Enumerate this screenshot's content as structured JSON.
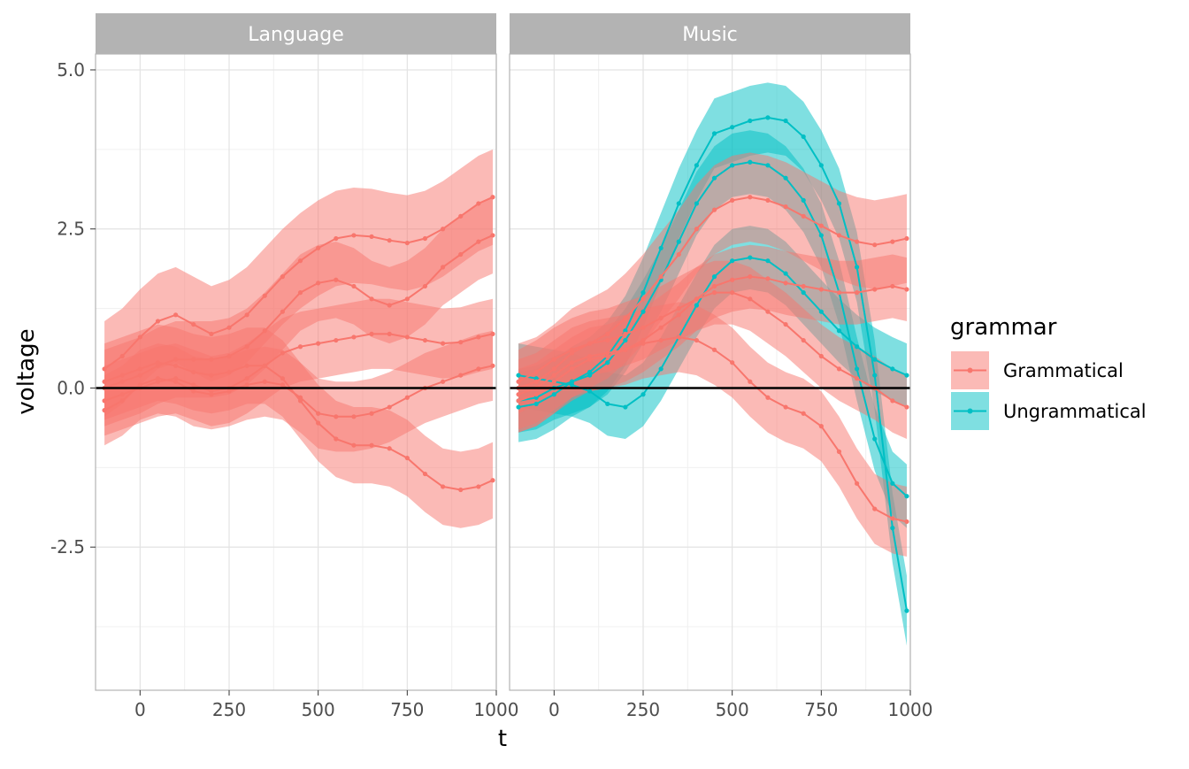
{
  "chart_data": {
    "type": "line",
    "xlabel": "t",
    "ylabel": "voltage",
    "xlim": [
      -125,
      1000
    ],
    "ylim": [
      -4.75,
      5.25
    ],
    "xticks": [
      0,
      250,
      500,
      750,
      1000
    ],
    "xtick_labels": [
      "0",
      "250",
      "500",
      "750",
      "1000"
    ],
    "yticks": [
      5.0,
      2.5,
      0.0,
      -2.5
    ],
    "ytick_labels": [
      "5.0",
      "2.5",
      "0.0",
      "-2.5"
    ],
    "reference_line_y": 0,
    "grid": true,
    "facets": [
      "Language",
      "Music"
    ],
    "legend": {
      "title": "grammar",
      "position": "right",
      "entries": [
        {
          "label": "Grammatical",
          "color": "#F8766D"
        },
        {
          "label": "Ungrammatical",
          "color": "#00BFC4"
        }
      ]
    },
    "x": [
      -100,
      -50,
      0,
      50,
      100,
      150,
      200,
      250,
      300,
      350,
      400,
      450,
      500,
      550,
      600,
      650,
      700,
      750,
      800,
      850,
      900,
      950,
      990
    ],
    "panels": [
      {
        "facet": "Language",
        "series": [
          {
            "group": "Grammatical",
            "values": [
              0.3,
              0.5,
              0.8,
              1.05,
              1.15,
              1.0,
              0.85,
              0.95,
              1.15,
              1.45,
              1.75,
              2.0,
              2.2,
              2.35,
              2.4,
              2.38,
              2.32,
              2.28,
              2.35,
              2.5,
              2.7,
              2.9,
              3.0
            ],
            "band": 0.75
          },
          {
            "group": "Grammatical",
            "values": [
              0.0,
              0.1,
              0.2,
              0.35,
              0.45,
              0.45,
              0.45,
              0.5,
              0.65,
              0.9,
              1.2,
              1.5,
              1.65,
              1.7,
              1.6,
              1.4,
              1.3,
              1.4,
              1.6,
              1.9,
              2.1,
              2.3,
              2.4
            ],
            "band": 0.6
          },
          {
            "group": "Grammatical",
            "values": [
              -0.2,
              -0.1,
              0.0,
              0.1,
              0.15,
              0.05,
              -0.05,
              0.0,
              0.15,
              0.35,
              0.55,
              0.65,
              0.7,
              0.75,
              0.8,
              0.85,
              0.85,
              0.8,
              0.75,
              0.7,
              0.72,
              0.8,
              0.85
            ],
            "band": 0.55
          },
          {
            "group": "Grammatical",
            "values": [
              -0.35,
              -0.2,
              0.05,
              0.15,
              0.1,
              -0.05,
              -0.1,
              -0.05,
              0.05,
              0.1,
              0.05,
              -0.15,
              -0.4,
              -0.45,
              -0.45,
              -0.4,
              -0.3,
              -0.15,
              0.0,
              0.1,
              0.2,
              0.3,
              0.35
            ],
            "band": 0.55
          },
          {
            "group": "Grammatical",
            "values": [
              0.1,
              0.2,
              0.3,
              0.4,
              0.35,
              0.25,
              0.2,
              0.25,
              0.35,
              0.35,
              0.15,
              -0.2,
              -0.55,
              -0.8,
              -0.9,
              -0.9,
              -0.95,
              -1.1,
              -1.35,
              -1.55,
              -1.6,
              -1.55,
              -1.45
            ],
            "band": 0.6
          }
        ]
      },
      {
        "facet": "Music",
        "series": [
          {
            "group": "Ungrammatical",
            "values": [
              -0.3,
              -0.25,
              -0.1,
              0.1,
              0.25,
              0.5,
              0.9,
              1.5,
              2.2,
              2.9,
              3.5,
              4.0,
              4.1,
              4.2,
              4.25,
              4.2,
              3.95,
              3.5,
              2.9,
              1.9,
              0.2,
              -2.2,
              -3.5
            ],
            "band": 0.55
          },
          {
            "group": "Ungrammatical",
            "values": [
              -0.2,
              -0.15,
              0.0,
              0.1,
              0.2,
              0.4,
              0.75,
              1.2,
              1.7,
              2.3,
              2.9,
              3.3,
              3.5,
              3.55,
              3.5,
              3.3,
              2.95,
              2.4,
              1.5,
              0.3,
              -0.8,
              -1.5,
              -1.7
            ],
            "band": 0.5
          },
          {
            "group": "Ungrammatical",
            "values": [
              0.2,
              0.15,
              0.1,
              0.05,
              -0.05,
              -0.25,
              -0.3,
              -0.1,
              0.3,
              0.8,
              1.3,
              1.75,
              2.0,
              2.05,
              2.0,
              1.8,
              1.5,
              1.2,
              0.9,
              0.65,
              0.45,
              0.3,
              0.2
            ],
            "band": 0.5
          },
          {
            "group": "Grammatical",
            "values": [
              0.0,
              0.1,
              0.3,
              0.55,
              0.7,
              0.85,
              1.1,
              1.4,
              1.75,
              2.1,
              2.5,
              2.8,
              2.95,
              3.0,
              2.95,
              2.85,
              2.7,
              2.55,
              2.4,
              2.3,
              2.25,
              2.3,
              2.35
            ],
            "band": 0.7
          },
          {
            "group": "Grammatical",
            "values": [
              -0.2,
              -0.1,
              0.1,
              0.3,
              0.45,
              0.5,
              0.6,
              0.75,
              0.95,
              1.15,
              1.4,
              1.6,
              1.7,
              1.75,
              1.72,
              1.65,
              1.6,
              1.55,
              1.5,
              1.5,
              1.55,
              1.6,
              1.55
            ],
            "band": 0.5
          },
          {
            "group": "Grammatical",
            "values": [
              0.1,
              0.25,
              0.45,
              0.6,
              0.7,
              0.75,
              0.85,
              0.95,
              1.1,
              1.25,
              1.4,
              1.5,
              1.5,
              1.4,
              1.2,
              1.0,
              0.75,
              0.5,
              0.3,
              0.15,
              0.0,
              -0.2,
              -0.3
            ],
            "band": 0.5
          },
          {
            "group": "Grammatical",
            "values": [
              -0.1,
              0.0,
              0.2,
              0.4,
              0.5,
              0.55,
              0.6,
              0.7,
              0.75,
              0.8,
              0.75,
              0.6,
              0.4,
              0.1,
              -0.15,
              -0.3,
              -0.4,
              -0.6,
              -1.0,
              -1.5,
              -1.9,
              -2.05,
              -2.1
            ],
            "band": 0.55
          }
        ]
      }
    ]
  }
}
